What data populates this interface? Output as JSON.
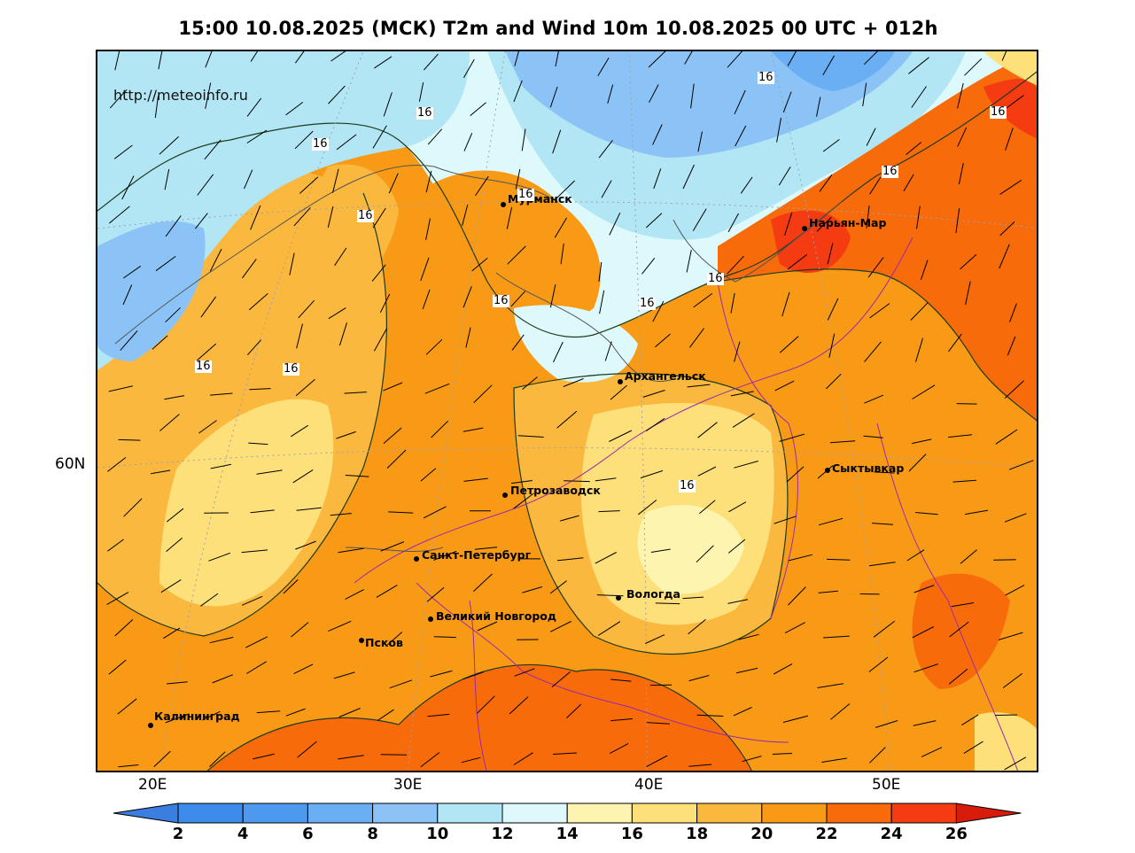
{
  "title": "15:00 10.08.2025 (МСК) T2m and Wind 10m 10.08.2025 00 UTC + 012h",
  "watermark": "http://meteoinfo.ru",
  "latitude_labels": [
    "60N"
  ],
  "longitude_labels": [
    "20E",
    "30E",
    "40E",
    "50E"
  ],
  "cities": [
    {
      "name": "Мурманск"
    },
    {
      "name": "Нарьян-Мар"
    },
    {
      "name": "Архангельск"
    },
    {
      "name": "Сыктывкар"
    },
    {
      "name": "Петрозаводск"
    },
    {
      "name": "Санкт-Петербург"
    },
    {
      "name": "Вологда"
    },
    {
      "name": "Великий Новгород"
    },
    {
      "name": "Псков"
    },
    {
      "name": "Калининград"
    }
  ],
  "isotherm_labels": [
    "16",
    "16",
    "16",
    "16",
    "16",
    "16",
    "16",
    "16",
    "16",
    "16",
    "16",
    "16",
    "16",
    "16"
  ],
  "colorbar": {
    "ticks": [
      "2",
      "4",
      "6",
      "8",
      "10",
      "12",
      "14",
      "16",
      "18",
      "20",
      "22",
      "24",
      "26"
    ],
    "colors": [
      "#3d8bea",
      "#4c9af0",
      "#6aaef3",
      "#8cc3f6",
      "#b2e6f5",
      "#def9fb",
      "#fdf4b0",
      "#fde07a",
      "#fbb83e",
      "#f99a17",
      "#f86b0b",
      "#f43b12"
    ],
    "under_color": "#3a7fe0",
    "over_color": "#d81c0c"
  }
}
